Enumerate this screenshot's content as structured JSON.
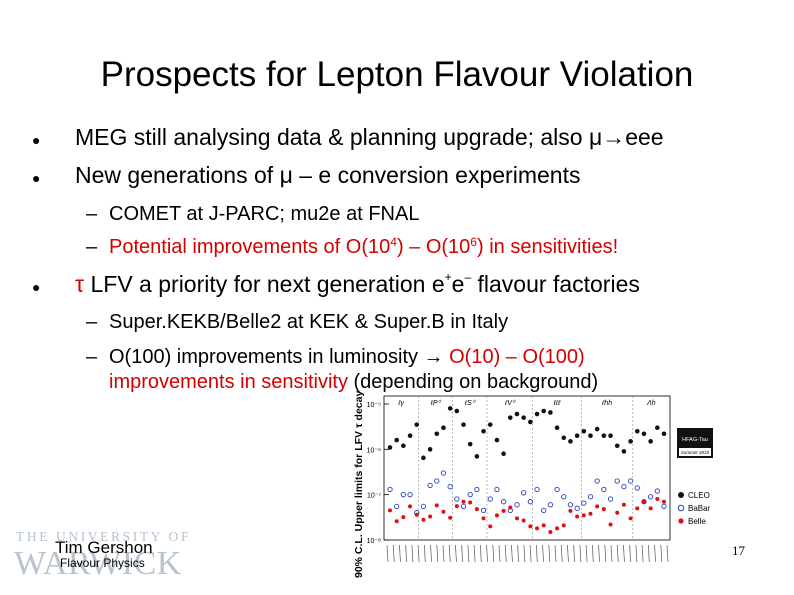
{
  "title": "Prospects for Lepton Flavour Violation",
  "bullets": {
    "b1": "MEG still analysing data & planning upgrade; also μ→eee",
    "b2": "New generations of μ – e conversion experiments",
    "b2_sub1": "COMET at J-PARC; mu2e at FNAL",
    "b2_sub2": {
      "pre": "Potential improvements of O(10",
      "exp1": "4",
      "mid": ") – O(10",
      "exp2": "6",
      "post": ") in sensitivities!"
    },
    "b3": {
      "tau": "τ",
      "text": " LFV a priority for next generation e",
      "plus": "+",
      "e2": "e",
      "minus": "–",
      "tail": " flavour factories"
    },
    "b3_sub1": "Super.KEKB/Belle2 at KEK & Super.B in Italy",
    "b3_sub2": {
      "plain": "O(100) improvements in luminosity → ",
      "red1": "O(10) – O(100)",
      "red2": "improvements in sensitivity",
      "tail": " (depending on background)"
    }
  },
  "footer": {
    "author": "Tim Gershon",
    "dept": "Flavour Physics",
    "page": "17",
    "logo_line1": "THE UNIVERSITY OF",
    "logo_line2": "WARWICK"
  },
  "chart_data": {
    "type": "scatter",
    "ylabel": "90% C.L. Upper limits for LFV τ decays",
    "yscale": "log",
    "ylim": [
      1e-08,
      1e-05
    ],
    "yticks": [
      "10⁻⁵",
      "10⁻⁶",
      "10⁻⁷",
      "10⁻⁸"
    ],
    "group_labels": [
      "ℓγ",
      "ℓP⁰",
      "ℓS⁰",
      "ℓV⁰",
      "ℓℓℓ",
      "ℓhh",
      "Λh"
    ],
    "badge": "HFAG-Tau",
    "badge_sub": "Summer 2010",
    "legend": [
      "CLEO",
      "BaBar",
      "Belle"
    ],
    "colors": {
      "CLEO": "#111111",
      "BaBar": "#2a3fc0",
      "Belle": "#e01010"
    },
    "series": [
      {
        "name": "CLEO",
        "values": [
          1.1e-06,
          1.6e-06,
          1.2e-06,
          2e-06,
          3.5e-06,
          6.5e-07,
          1e-06,
          2.2e-06,
          3e-06,
          8e-06,
          7e-06,
          3.5e-06,
          1.3e-06,
          7e-07,
          2.5e-06,
          3.5e-06,
          1.6e-06,
          8e-07,
          5e-06,
          6e-06,
          5e-06,
          4e-06,
          6e-06,
          7e-06,
          6.5e-06,
          3e-06,
          1.8e-06,
          1.5e-06,
          2e-06,
          2.5e-06,
          2e-06,
          2.8e-06,
          2e-06,
          2e-06,
          1.2e-06,
          9e-07,
          1.5e-06,
          2.5e-06,
          2.2e-06,
          1.5e-06,
          3e-06,
          2.2e-06
        ]
      },
      {
        "name": "BaBar",
        "values": [
          1.3e-07,
          5.5e-08,
          1e-07,
          1e-07,
          4e-08,
          5.5e-08,
          1.6e-07,
          2e-07,
          3e-07,
          1.5e-07,
          8e-08,
          5.5e-08,
          1e-07,
          1.3e-07,
          4.5e-08,
          8e-08,
          1.3e-07,
          7e-08,
          4.5e-08,
          6e-08,
          1.1e-07,
          7e-08,
          1.3e-07,
          4.5e-08,
          6e-08,
          1.3e-07,
          9e-08,
          6e-08,
          5e-08,
          6.5e-08,
          9e-08,
          2e-07,
          1.3e-07,
          8e-08,
          2e-07,
          1.5e-07,
          2e-07,
          1.4e-07,
          7e-08,
          9e-08,
          1.2e-07,
          5.5e-08
        ]
      },
      {
        "name": "Belle",
        "values": [
          4.5e-08,
          2.6e-08,
          3.2e-08,
          5.5e-08,
          3.6e-08,
          2.8e-08,
          3.3e-08,
          5.8e-08,
          4.2e-08,
          3.1e-08,
          5.6e-08,
          7e-08,
          6.7e-08,
          4.8e-08,
          3e-08,
          2e-08,
          3.5e-08,
          4.4e-08,
          5.2e-08,
          3e-08,
          2.7e-08,
          2e-08,
          1.8e-08,
          2.1e-08,
          1.5e-08,
          1.8e-08,
          2.1e-08,
          4.4e-08,
          3.3e-08,
          3.5e-08,
          3.8e-08,
          5.5e-08,
          4.8e-08,
          2.2e-08,
          4e-08,
          6e-08,
          3e-08,
          5e-08,
          7e-08,
          5e-08,
          8e-08,
          7e-08
        ]
      }
    ]
  }
}
